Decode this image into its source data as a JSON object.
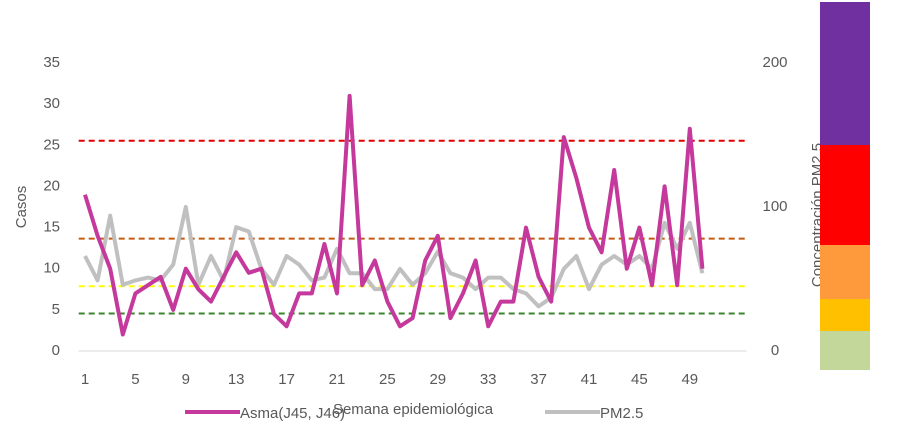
{
  "chart_data": {
    "type": "line",
    "x_label": "Semana epidemiológica",
    "y_label": "Casos",
    "y2_label": "Concentración PM2.5",
    "categories": [
      1,
      null,
      null,
      null,
      5,
      null,
      null,
      null,
      9,
      null,
      null,
      null,
      13,
      null,
      null,
      null,
      17,
      null,
      null,
      null,
      21,
      null,
      null,
      null,
      25,
      null,
      null,
      null,
      29,
      null,
      null,
      null,
      33,
      null,
      null,
      null,
      37,
      null,
      null,
      null,
      41,
      null,
      null,
      null,
      45,
      null,
      null,
      null,
      49,
      null,
      null,
      null,
      null
    ],
    "series": [
      {
        "name": "Asma(J45, J46)",
        "color": "#c4399b",
        "values": [
          19,
          14,
          10,
          2,
          7,
          8,
          9,
          5,
          10,
          7.5,
          6,
          9,
          12,
          9.5,
          10,
          4.5,
          3,
          7,
          7,
          13,
          7,
          31,
          8,
          11,
          6,
          3,
          4,
          11,
          14,
          4,
          7,
          11,
          3,
          6,
          6,
          15,
          9,
          6,
          26,
          21,
          15,
          12,
          22,
          10,
          15,
          8,
          20,
          8,
          27,
          10,
          null,
          null,
          null
        ]
      },
      {
        "name": "PM2.5",
        "color": "#c0c0c0",
        "axis": "y2",
        "values": [
          66,
          49,
          94,
          46,
          49,
          51,
          49,
          60,
          100,
          46,
          66,
          49,
          86,
          83,
          57,
          46,
          66,
          60,
          49,
          51,
          71,
          54,
          54,
          43,
          43,
          57,
          46,
          54,
          69,
          54,
          51,
          43,
          51,
          51,
          43,
          40,
          31,
          37,
          57,
          66,
          43,
          60,
          66,
          60,
          66,
          57,
          89,
          71,
          89,
          54,
          null,
          null,
          null
        ]
      }
    ],
    "reference_lines": [
      {
        "value": 146,
        "axis": "y2",
        "color": "#e00000"
      },
      {
        "value": 78,
        "axis": "y2",
        "color": "#c55a11"
      },
      {
        "value": 45,
        "axis": "y2",
        "color": "#ffff00"
      },
      {
        "value": 26,
        "axis": "y2",
        "color": "#38862c"
      }
    ],
    "ylim": [
      0,
      35
    ],
    "yticks": [
      0,
      5,
      10,
      15,
      20,
      25,
      30,
      35
    ],
    "y2lim": [
      0,
      200
    ],
    "y2ticks": [
      0,
      100,
      200
    ]
  }
}
